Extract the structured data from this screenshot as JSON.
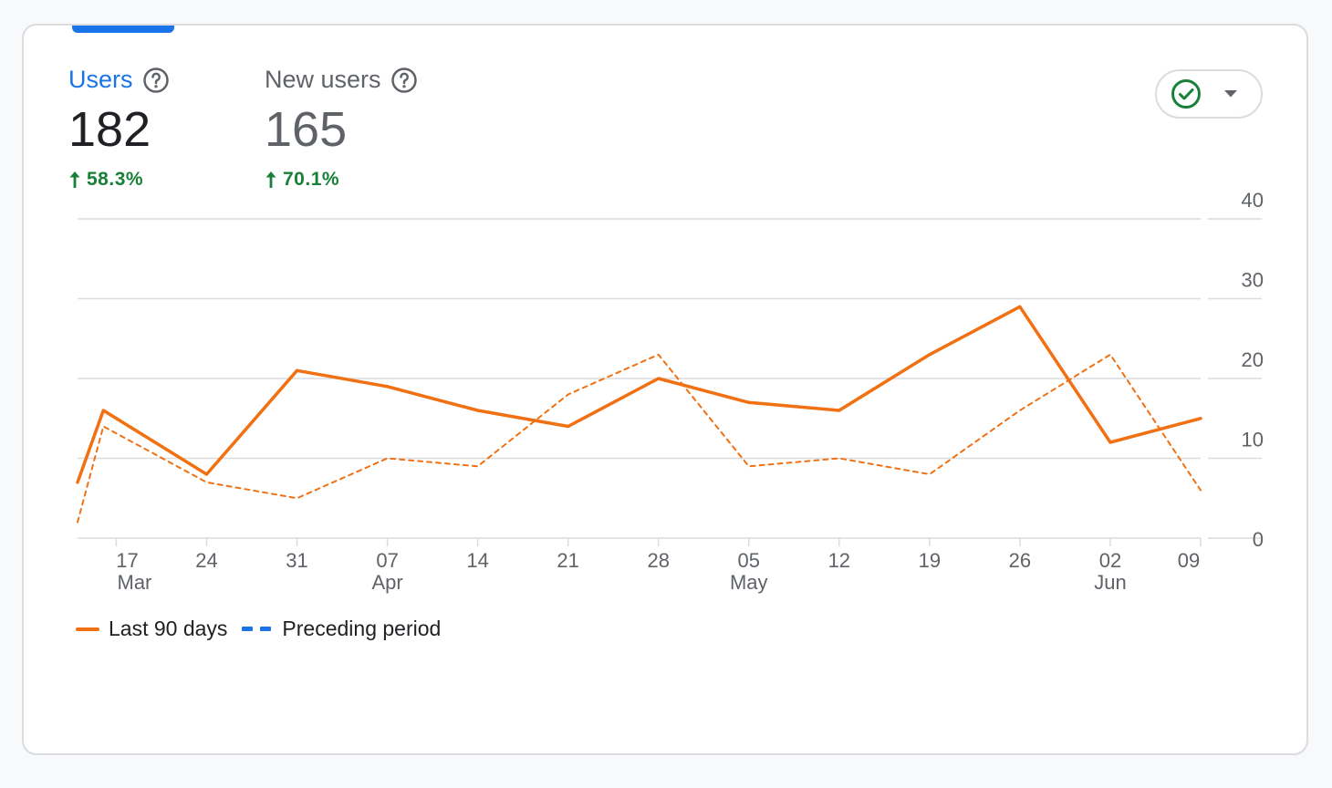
{
  "metrics": [
    {
      "title": "Users",
      "value": "182",
      "change": "58.3%"
    },
    {
      "title": "New users",
      "value": "165",
      "change": "70.1%"
    }
  ],
  "icons": {
    "help": "help-circle-icon",
    "increase": "arrow-up-icon",
    "compare_status": "check-circle-icon",
    "dropdown": "caret-down-icon"
  },
  "colors": {
    "active_tab": "#1a73e8",
    "positive": "#188038",
    "series_current": "#f07012",
    "series_preceding": "#f07012",
    "legend_preceding": "#1a73e8",
    "check": "#188038"
  },
  "chart_data": {
    "type": "line",
    "grid": true,
    "ylim": [
      0,
      40
    ],
    "y_ticks": [
      "0",
      "10",
      "20",
      "30",
      "40"
    ],
    "x_axis": {
      "domain": [
        "2024-03-14",
        "2024-06-09"
      ],
      "ticks": [
        {
          "date": "2024-03-17",
          "day": "17",
          "month": "Mar"
        },
        {
          "date": "2024-03-24",
          "day": "24",
          "month": ""
        },
        {
          "date": "2024-03-31",
          "day": "31",
          "month": ""
        },
        {
          "date": "2024-04-07",
          "day": "07",
          "month": "Apr"
        },
        {
          "date": "2024-04-14",
          "day": "14",
          "month": ""
        },
        {
          "date": "2024-04-21",
          "day": "21",
          "month": ""
        },
        {
          "date": "2024-04-28",
          "day": "28",
          "month": ""
        },
        {
          "date": "2024-05-05",
          "day": "05",
          "month": "May"
        },
        {
          "date": "2024-05-12",
          "day": "12",
          "month": ""
        },
        {
          "date": "2024-05-19",
          "day": "19",
          "month": ""
        },
        {
          "date": "2024-05-26",
          "day": "26",
          "month": ""
        },
        {
          "date": "2024-06-02",
          "day": "02",
          "month": "Jun"
        },
        {
          "date": "2024-06-09",
          "day": "09",
          "month": ""
        }
      ]
    },
    "series": [
      {
        "name": "Last 90 days",
        "style": "solid",
        "x": [
          "2024-03-14",
          "2024-03-16",
          "2024-03-24",
          "2024-03-31",
          "2024-04-07",
          "2024-04-14",
          "2024-04-21",
          "2024-04-28",
          "2024-05-05",
          "2024-05-12",
          "2024-05-19",
          "2024-05-26",
          "2024-06-02",
          "2024-06-09"
        ],
        "values": [
          7,
          16,
          8,
          21,
          19,
          16,
          14,
          20,
          17,
          16,
          23,
          29,
          12,
          15
        ]
      },
      {
        "name": "Preceding period",
        "style": "dashed",
        "x": [
          "2024-03-14",
          "2024-03-16",
          "2024-03-24",
          "2024-03-31",
          "2024-04-07",
          "2024-04-14",
          "2024-04-21",
          "2024-04-28",
          "2024-05-05",
          "2024-05-12",
          "2024-05-19",
          "2024-05-26",
          "2024-06-02",
          "2024-06-09"
        ],
        "values": [
          2,
          14,
          7,
          5,
          10,
          9,
          18,
          23,
          9,
          10,
          8,
          16,
          23,
          6
        ]
      }
    ]
  }
}
